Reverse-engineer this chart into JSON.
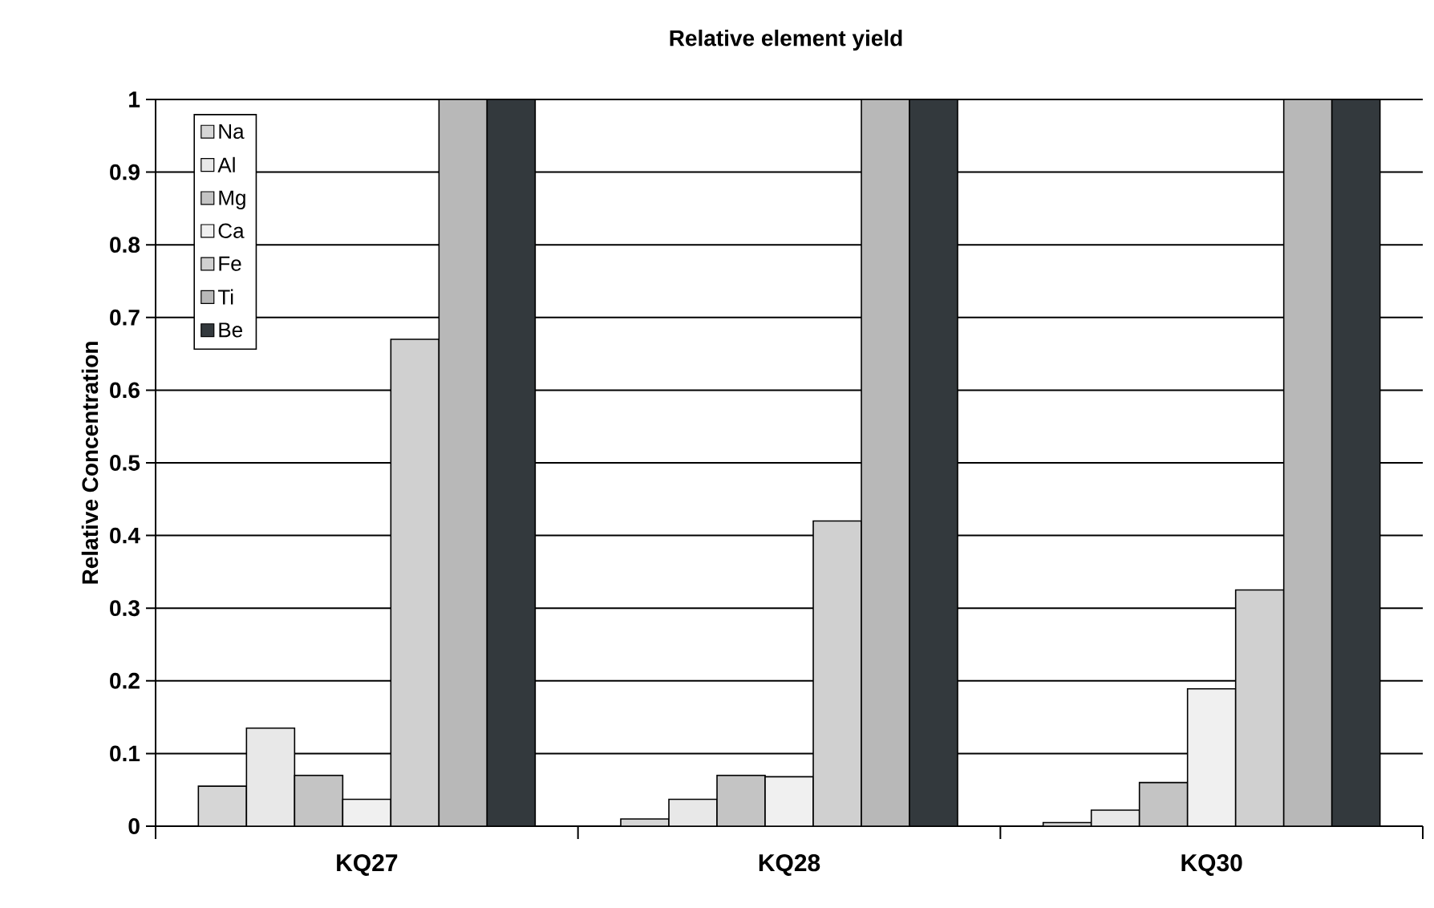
{
  "chart_data": {
    "type": "bar",
    "title": "Relative element yield",
    "ylabel": "Relative Concentration",
    "categories": [
      "KQ27",
      "KQ28",
      "KQ30"
    ],
    "series": [
      {
        "name": "Na",
        "color": "#d6d6d6",
        "values": [
          0.055,
          0.01,
          0.005
        ]
      },
      {
        "name": "Al",
        "color": "#e8e8e8",
        "values": [
          0.135,
          0.037,
          0.022
        ]
      },
      {
        "name": "Mg",
        "color": "#c4c4c4",
        "values": [
          0.07,
          0.07,
          0.06
        ]
      },
      {
        "name": "Ca",
        "color": "#f0f0f0",
        "values": [
          0.037,
          0.068,
          0.189
        ]
      },
      {
        "name": "Fe",
        "color": "#d0d0d0",
        "values": [
          0.67,
          0.42,
          0.325
        ]
      },
      {
        "name": "Ti",
        "color": "#b8b8b8",
        "values": [
          1,
          1,
          1
        ]
      },
      {
        "name": "Be",
        "color": "#33393d",
        "values": [
          1,
          1,
          1
        ]
      }
    ],
    "ylim": [
      0,
      1
    ],
    "yticks": [
      0,
      0.1,
      0.2,
      0.3,
      0.4,
      0.5,
      0.6,
      0.7,
      0.8,
      0.9,
      1
    ],
    "grid": "y",
    "legend": "top left"
  }
}
